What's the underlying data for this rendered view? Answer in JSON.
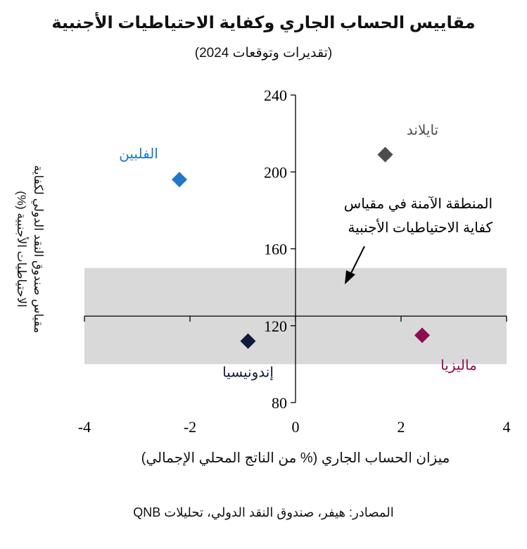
{
  "chart_data": {
    "type": "scatter",
    "title": "مقاييس الحساب الجاري وكفاية الاحتياطيات الأجنبية",
    "subtitle": "(تقديرات وتوقعات 2024)",
    "xlabel": "ميزان الحساب الجاري (% من الناتج المحلي الإجمالي)",
    "ylabel": "مقياس صندوق النقد الدولي لكفاية الاحتياطيات الأجنبية (%)",
    "xlim": [
      -4,
      4
    ],
    "ylim": [
      80,
      240
    ],
    "xticks": [
      "-4",
      "-2",
      "0",
      "2",
      "4"
    ],
    "yticks": [
      "80",
      "120",
      "160",
      "200",
      "240"
    ],
    "x_axis_crosses_y_at": 125,
    "grid": false,
    "safe_zone": {
      "y_range": [
        100,
        150
      ],
      "label": "المنطقة الآمنة في مقياس كفاية الاحتياطيات الأجنبية",
      "color": "#d9d9d9"
    },
    "points": [
      {
        "name": "الفلبين",
        "x": -2.2,
        "y": 196,
        "color": "#1f77c8"
      },
      {
        "name": "تايلاند",
        "x": 1.7,
        "y": 209,
        "color": "#4d4d4d"
      },
      {
        "name": "إندونيسيا",
        "x": -0.9,
        "y": 112,
        "color": "#0f1a3c"
      },
      {
        "name": "ماليزيا",
        "x": 2.4,
        "y": 115,
        "color": "#8b0f4f"
      }
    ]
  },
  "source": "المصادر: هيفر، صندوق النقد الدولي، تحليلات QNB"
}
